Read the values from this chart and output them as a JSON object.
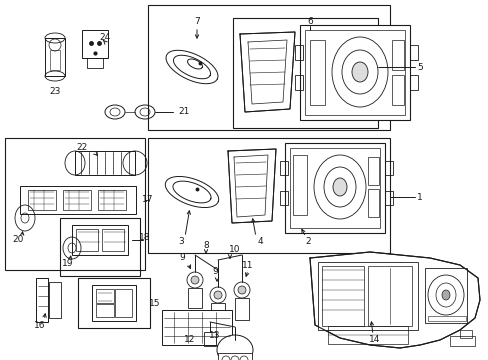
{
  "background_color": "#f0f0f0",
  "fig_width": 4.89,
  "fig_height": 3.6,
  "dpi": 100,
  "lc": "#1a1a1a",
  "fs": 6.5,
  "fs_small": 5.5
}
